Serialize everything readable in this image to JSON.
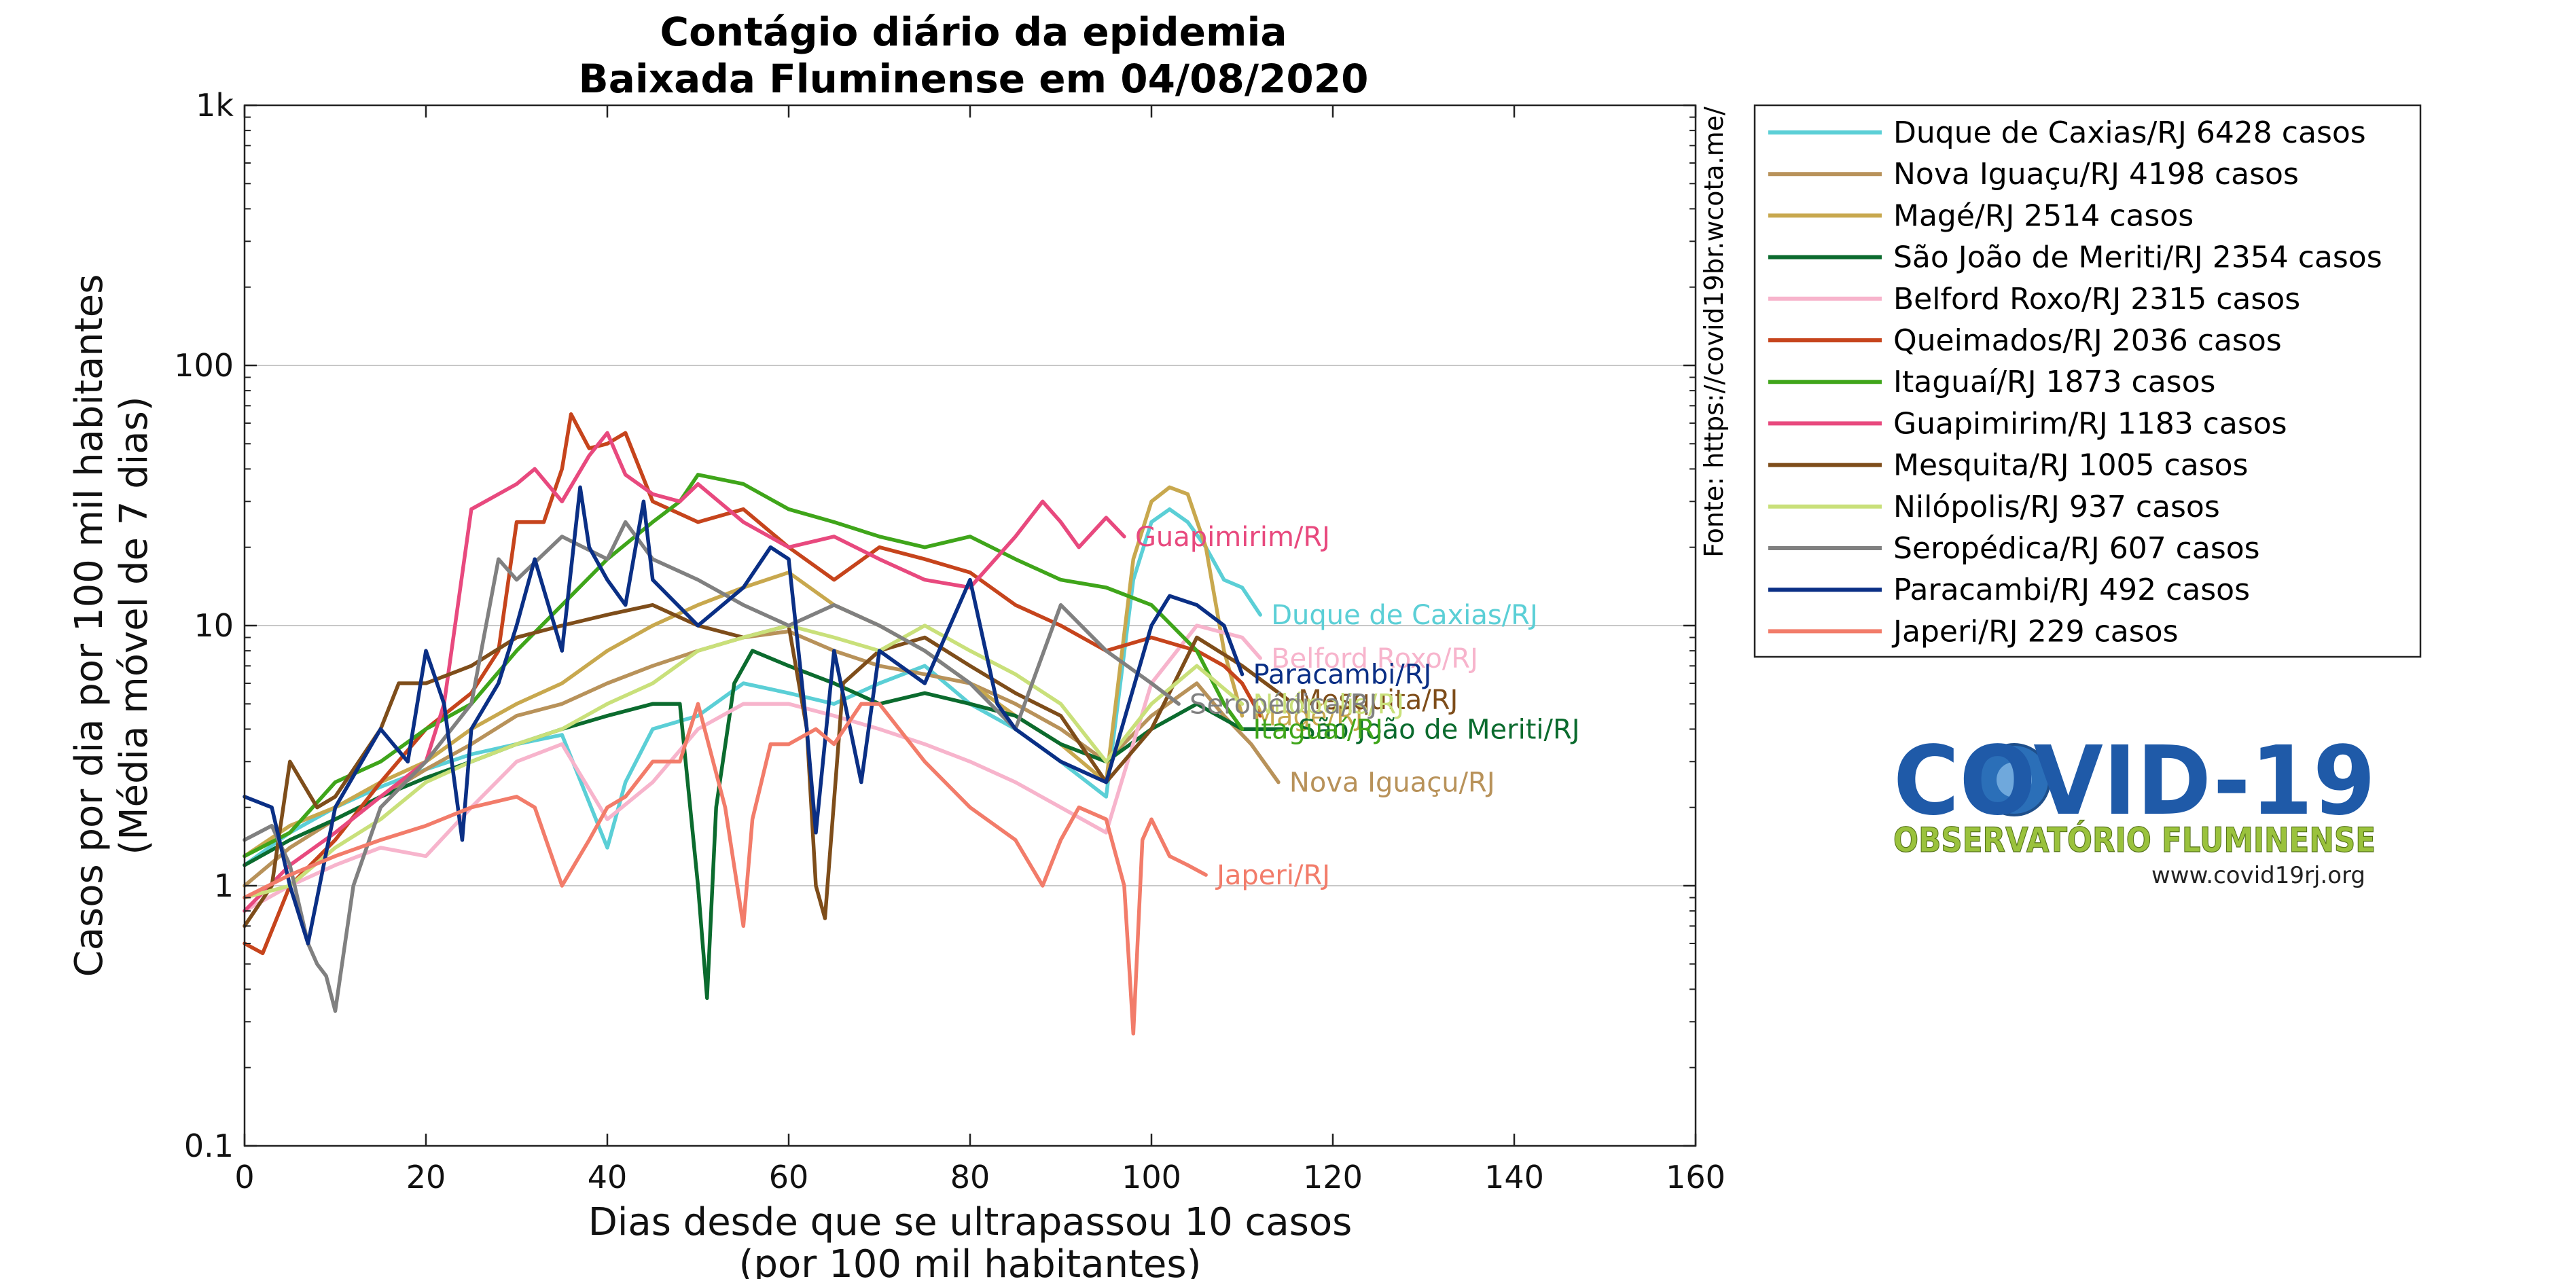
{
  "chart_data": {
    "type": "line",
    "title": [
      "Contágio diário da epidemia",
      "Baixada Fluminense em 04/08/2020"
    ],
    "xlabel": [
      "Dias desde que se ultrapassou 10 casos",
      "(por 100 mil habitantes)"
    ],
    "ylabel": [
      "Casos por dia por 100 mil habitantes",
      "(Média móvel de 7 dias)"
    ],
    "xlim": [
      0,
      160
    ],
    "ylim": [
      0.1,
      1000
    ],
    "yscale": "log",
    "x_ticks": [
      0,
      20,
      40,
      60,
      80,
      100,
      120,
      140,
      160
    ],
    "x_tick_labels": [
      "0",
      "20",
      "40",
      "60",
      "80",
      "100",
      "120",
      "140",
      "160"
    ],
    "y_ticks": [
      0.1,
      1,
      10,
      100,
      1000
    ],
    "y_tick_labels": [
      "0.1",
      "1",
      "10",
      "100",
      "1k"
    ],
    "grid": "horizontal-major",
    "legend_position": "outside-right-top",
    "source": "Fonte: https://covid19br.wcota.me/",
    "series": [
      {
        "name": "Duque de Caxias/RJ",
        "legend": "Duque de Caxias/RJ  6428 casos",
        "color": "#5bcfd6",
        "label": "Duque de Caxias/RJ",
        "x": [
          0,
          5,
          10,
          15,
          20,
          25,
          30,
          35,
          40,
          42,
          45,
          50,
          55,
          60,
          65,
          70,
          75,
          80,
          85,
          90,
          95,
          98,
          100,
          102,
          104,
          106,
          108,
          110,
          112
        ],
        "y": [
          1.2,
          1.6,
          2.0,
          2.4,
          2.8,
          3.2,
          3.5,
          3.8,
          1.4,
          2.5,
          4.0,
          4.5,
          6.0,
          5.5,
          5.0,
          6.0,
          7.0,
          5.0,
          4.0,
          3.0,
          2.2,
          15,
          25,
          28,
          25,
          20,
          15,
          14,
          11
        ]
      },
      {
        "name": "Nova Iguaçu/RJ",
        "legend": "Nova Iguaçu/RJ  4198 casos",
        "color": "#b8925a",
        "label": "Nova Iguaçu/RJ",
        "x": [
          0,
          5,
          10,
          15,
          20,
          25,
          30,
          35,
          40,
          45,
          50,
          55,
          60,
          65,
          70,
          75,
          80,
          85,
          90,
          95,
          100,
          105,
          108,
          111,
          114
        ],
        "y": [
          1.0,
          1.4,
          1.8,
          2.2,
          2.8,
          3.5,
          4.5,
          5.0,
          6.0,
          7.0,
          8.0,
          9.0,
          9.5,
          8.0,
          7.0,
          6.5,
          6.0,
          5.0,
          4.0,
          3.0,
          4.5,
          6.0,
          4.5,
          3.5,
          2.5
        ]
      },
      {
        "name": "Magé/RJ",
        "legend": "Magé/RJ  2514 casos",
        "color": "#c8a84e",
        "label": "Magé/RJ",
        "x": [
          0,
          5,
          10,
          15,
          20,
          25,
          30,
          35,
          40,
          45,
          50,
          55,
          60,
          65,
          70,
          75,
          80,
          85,
          90,
          95,
          98,
          100,
          102,
          104,
          106,
          108,
          110
        ],
        "y": [
          1.3,
          1.7,
          2.0,
          2.5,
          3.0,
          4.0,
          5.0,
          6.0,
          8.0,
          10,
          12,
          14,
          16,
          12,
          10,
          8.0,
          6.0,
          4.5,
          3.5,
          2.5,
          18,
          30,
          34,
          32,
          20,
          8.0,
          4.5
        ]
      },
      {
        "name": "São João de Meriti/RJ",
        "legend": "São João de Meriti/RJ  2354 casos",
        "color": "#0b6b2e",
        "label": "São João de Meriti/RJ",
        "x": [
          0,
          5,
          10,
          15,
          20,
          25,
          30,
          35,
          40,
          45,
          48,
          50,
          51,
          52,
          54,
          56,
          60,
          65,
          70,
          75,
          80,
          85,
          90,
          95,
          100,
          105,
          110,
          115
        ],
        "y": [
          1.2,
          1.5,
          1.8,
          2.2,
          2.6,
          3.0,
          3.5,
          4.0,
          4.5,
          5.0,
          5.0,
          1.0,
          0.37,
          2.0,
          6.0,
          8.0,
          7.0,
          6.0,
          5.0,
          5.5,
          5.0,
          4.5,
          3.5,
          3.0,
          4.0,
          5.0,
          4.0,
          4.0
        ]
      },
      {
        "name": "Belford Roxo/RJ",
        "legend": "Belford Roxo/RJ  2315 casos",
        "color": "#f7b4cc",
        "label": "Belford Roxo/RJ",
        "x": [
          0,
          5,
          10,
          15,
          20,
          25,
          30,
          35,
          40,
          45,
          50,
          55,
          60,
          65,
          70,
          75,
          80,
          85,
          90,
          95,
          100,
          105,
          110,
          112
        ],
        "y": [
          0.8,
          1.0,
          1.2,
          1.4,
          1.3,
          2.0,
          3.0,
          3.5,
          1.8,
          2.5,
          4.0,
          5.0,
          5.0,
          4.5,
          4.0,
          3.5,
          3.0,
          2.5,
          2.0,
          1.6,
          6.0,
          10,
          9.0,
          7.5
        ]
      },
      {
        "name": "Queimados/RJ",
        "legend": "Queimados/RJ  2036 casos",
        "color": "#c6441c",
        "label": "",
        "x": [
          0,
          2,
          5,
          10,
          15,
          20,
          25,
          28,
          30,
          33,
          35,
          36,
          38,
          40,
          42,
          45,
          50,
          55,
          60,
          65,
          70,
          75,
          80,
          85,
          90,
          95,
          100,
          105,
          108,
          110,
          112
        ],
        "y": [
          0.6,
          0.55,
          1.0,
          1.5,
          2.5,
          4.0,
          5.5,
          8.0,
          25,
          25,
          40,
          65,
          48,
          50,
          55,
          30,
          25,
          28,
          20,
          15,
          20,
          18,
          16,
          12,
          10,
          8.0,
          9.0,
          8.0,
          7.0,
          6.0,
          4.5
        ]
      },
      {
        "name": "Itaguaí/RJ",
        "legend": "Itaguaí/RJ  1873 casos",
        "color": "#3fa51a",
        "label": "Itaguaí/RJ",
        "x": [
          0,
          5,
          10,
          15,
          20,
          25,
          30,
          35,
          40,
          45,
          48,
          50,
          55,
          60,
          65,
          70,
          75,
          80,
          85,
          90,
          95,
          100,
          105,
          108,
          110
        ],
        "y": [
          1.3,
          1.6,
          2.5,
          3.0,
          4.0,
          5.0,
          8.0,
          12,
          18,
          25,
          30,
          38,
          35,
          28,
          25,
          22,
          20,
          22,
          18,
          15,
          14,
          12,
          8.0,
          5.0,
          4.0
        ]
      },
      {
        "name": "Guapimirim/RJ",
        "legend": "Guapimirim/RJ  1183 casos",
        "color": "#e8497e",
        "label": "Guapimirim/RJ",
        "x": [
          0,
          5,
          10,
          15,
          20,
          22,
          25,
          28,
          30,
          32,
          35,
          38,
          40,
          42,
          45,
          48,
          50,
          55,
          60,
          65,
          70,
          75,
          80,
          85,
          88,
          90,
          92,
          95,
          97
        ],
        "y": [
          0.8,
          1.2,
          1.6,
          2.2,
          3.0,
          5.0,
          28,
          32,
          35,
          40,
          30,
          45,
          55,
          38,
          32,
          30,
          35,
          25,
          20,
          22,
          18,
          15,
          14,
          22,
          30,
          25,
          20,
          26,
          22
        ]
      },
      {
        "name": "Mesquita/RJ",
        "legend": "Mesquita/RJ  1005 casos",
        "color": "#7e4d1a",
        "label": "Mesquita/RJ",
        "x": [
          0,
          3,
          5,
          8,
          10,
          15,
          17,
          20,
          25,
          30,
          35,
          40,
          45,
          50,
          55,
          60,
          62,
          63,
          64,
          66,
          70,
          75,
          80,
          85,
          90,
          95,
          100,
          105,
          110,
          115
        ],
        "y": [
          0.7,
          1.0,
          3.0,
          2.0,
          2.2,
          4.0,
          6.0,
          6.0,
          7.0,
          9.0,
          10,
          11,
          12,
          10,
          9.0,
          10,
          4.0,
          1.0,
          0.75,
          6.0,
          8.0,
          9.0,
          7.0,
          5.5,
          4.5,
          2.5,
          4.0,
          9.0,
          7.0,
          5.2
        ]
      },
      {
        "name": "Nilópolis/RJ",
        "legend": "Nilópolis/RJ  937 casos",
        "color": "#c9e07a",
        "label": "Nilópolis/RJ",
        "x": [
          0,
          5,
          10,
          15,
          20,
          25,
          30,
          35,
          40,
          45,
          50,
          55,
          60,
          65,
          70,
          75,
          80,
          85,
          90,
          95,
          100,
          105,
          110
        ],
        "y": [
          0.9,
          1.0,
          1.4,
          1.8,
          2.5,
          3.0,
          3.5,
          4.0,
          5.0,
          6.0,
          8.0,
          9.0,
          10,
          9.0,
          8.0,
          10,
          8.0,
          6.5,
          5.0,
          3.0,
          5.0,
          7.0,
          5.0
        ]
      },
      {
        "name": "Seropédica/RJ",
        "legend": "Seropédica/RJ  607 casos",
        "color": "#808080",
        "label": "Seropédica/RJ",
        "x": [
          0,
          3,
          5,
          7,
          8,
          9,
          10,
          12,
          15,
          20,
          25,
          28,
          30,
          35,
          40,
          42,
          45,
          50,
          55,
          60,
          65,
          70,
          75,
          80,
          85,
          90,
          95,
          100,
          103
        ],
        "y": [
          1.5,
          1.7,
          1.2,
          0.6,
          0.5,
          0.45,
          0.33,
          1.0,
          2.0,
          3.0,
          5.0,
          18,
          15,
          22,
          18,
          25,
          18,
          15,
          12,
          10,
          12,
          10,
          8.0,
          6.0,
          4.0,
          12,
          8.0,
          6.0,
          5.0
        ]
      },
      {
        "name": "Paracambi/RJ",
        "legend": "Paracambi/RJ  492 casos",
        "color": "#0a2f85",
        "label": "Paracambi/RJ",
        "x": [
          0,
          3,
          5,
          7,
          10,
          15,
          18,
          20,
          22,
          24,
          25,
          28,
          30,
          32,
          35,
          37,
          38,
          40,
          42,
          44,
          45,
          50,
          55,
          58,
          60,
          62,
          63,
          65,
          68,
          70,
          75,
          80,
          83,
          85,
          90,
          95,
          100,
          102,
          105,
          108,
          110
        ],
        "y": [
          2.2,
          2.0,
          1.0,
          0.6,
          2.0,
          4.0,
          3.0,
          8.0,
          5.0,
          1.5,
          4.0,
          6.0,
          10,
          18,
          8.0,
          34,
          20,
          15,
          12,
          30,
          15,
          10,
          14,
          20,
          18,
          4.0,
          1.6,
          8.0,
          2.5,
          8.0,
          6.0,
          15,
          5.0,
          4.0,
          3.0,
          2.5,
          10,
          13,
          12,
          10,
          6.5
        ]
      },
      {
        "name": "Japeri/RJ",
        "legend": "Japeri/RJ  229 casos",
        "color": "#f27c6a",
        "label": "Japeri/RJ",
        "x": [
          0,
          5,
          10,
          15,
          20,
          25,
          30,
          32,
          35,
          38,
          40,
          42,
          45,
          48,
          50,
          53,
          55,
          56,
          58,
          60,
          63,
          65,
          68,
          70,
          75,
          80,
          85,
          88,
          90,
          92,
          95,
          97,
          98,
          99,
          100,
          102,
          104,
          106
        ],
        "y": [
          0.9,
          1.1,
          1.3,
          1.5,
          1.7,
          2.0,
          2.2,
          2.0,
          1.0,
          1.5,
          2.0,
          2.2,
          3.0,
          3.0,
          5.0,
          2.0,
          0.7,
          1.8,
          3.5,
          3.5,
          4.0,
          3.5,
          5.0,
          5.0,
          3.0,
          2.0,
          1.5,
          1.0,
          1.5,
          2.0,
          1.8,
          1.0,
          0.27,
          1.5,
          1.8,
          1.3,
          1.2,
          1.1
        ]
      }
    ]
  },
  "logo": {
    "title": "COVID-19",
    "subtitle": "OBSERVATÓRIO FLUMINENSE",
    "url": "www.covid19rj.org"
  }
}
